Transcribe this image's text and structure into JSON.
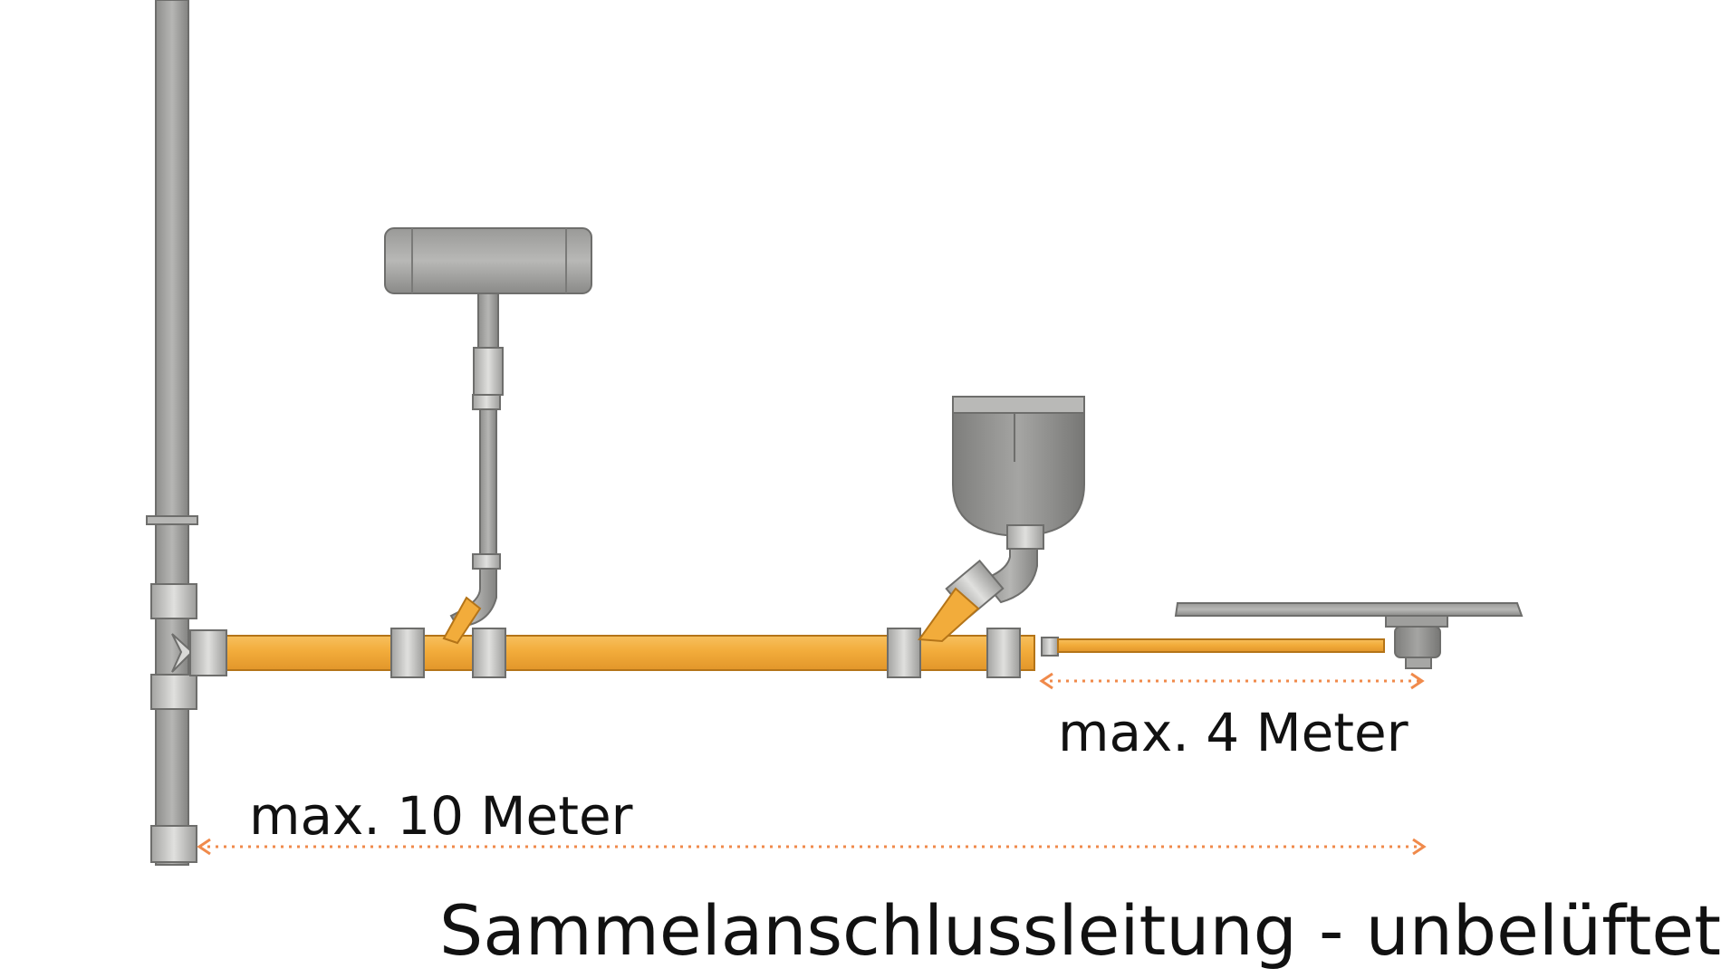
{
  "labels": {
    "short_run": "max. 4 Meter",
    "long_run": "max. 10 Meter",
    "caption": "Sammelanschlussleitung - unbelüftet"
  },
  "colors": {
    "collector_pipe": "#f2ac3b",
    "fitting_gray": "#8a8a88",
    "fitting_light": "#cfcfcd",
    "dimension_arrow": "#f08a4b",
    "text": "#111111",
    "background": "#ffffff"
  },
  "icons": {
    "stack": "vertical-downpipe",
    "fixture_1": "washbasin-box",
    "fixture_2": "toilet-bowl",
    "fixture_3": "shower-tray"
  }
}
